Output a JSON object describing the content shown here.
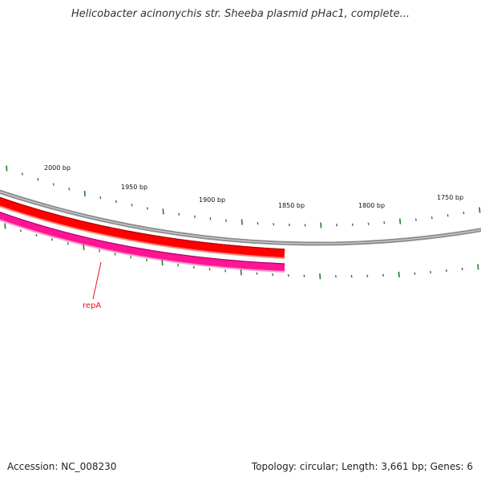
{
  "title": "Helicobacter acinonychis str. Sheeba plasmid pHac1, complete...",
  "footer": {
    "accession": "Accession: NC_008230",
    "summary": "Topology: circular; Length: 3,661 bp; Genes: 6"
  },
  "map": {
    "tick_labels": [
      {
        "label": "2000 bp",
        "bp": 2000
      },
      {
        "label": "1950 bp",
        "bp": 1950
      },
      {
        "label": "1900 bp",
        "bp": 1900
      },
      {
        "label": "1850 bp",
        "bp": 1850
      },
      {
        "label": "1800 bp",
        "bp": 1800
      },
      {
        "label": "1750 bp",
        "bp": 1750
      }
    ],
    "features": [
      {
        "name": "repA",
        "color": "#e6141e",
        "strand_colors": [
          "#ff0000",
          "#ff1493"
        ]
      }
    ],
    "colors": {
      "backbone": "#8c8c8c",
      "tick": "#2a7a2a",
      "cds_red": "#ff0000",
      "cds_pink": "#ff1493",
      "label_red": "#e6141e"
    }
  }
}
